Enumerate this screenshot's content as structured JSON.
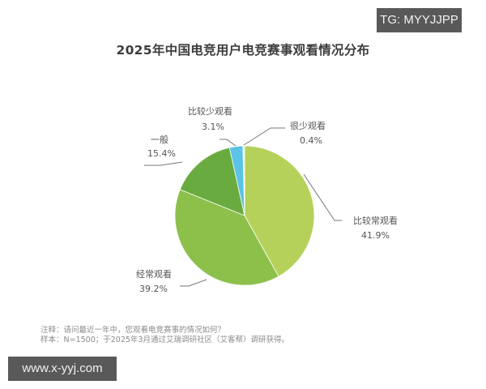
{
  "title": "2025年中国电竞用户电竞赛事观看情况分布",
  "watermarks": {
    "top_right": "TG: MYYJJPP",
    "bottom_left": "www.x-yyj.com"
  },
  "notes": {
    "line1": "注释：请问最近一年中，您观看电竞赛事的情况如何？",
    "line2": "样本：N=1500；于2025年3月通过艾瑞调研社区（艾客帮）调研获得。"
  },
  "chart_data": {
    "type": "pie",
    "title": "2025年中国电竞用户电竞赛事观看情况分布",
    "start_angle": "12 o'clock, clockwise",
    "legend": "none (callout labels)",
    "slices": [
      {
        "label": "比较常观看",
        "value": 41.9,
        "display": "41.9%",
        "color": "#b5d15a"
      },
      {
        "label": "经常观看",
        "value": 39.2,
        "display": "39.2%",
        "color": "#8cc04b"
      },
      {
        "label": "一般",
        "value": 15.4,
        "display": "15.4%",
        "color": "#6aab3f"
      },
      {
        "label": "比较少观看",
        "value": 3.1,
        "display": "3.1%",
        "color": "#5bc3e6"
      },
      {
        "label": "很少观看",
        "value": 0.4,
        "display": "0.4%",
        "color": "#e8f2d4"
      }
    ]
  }
}
